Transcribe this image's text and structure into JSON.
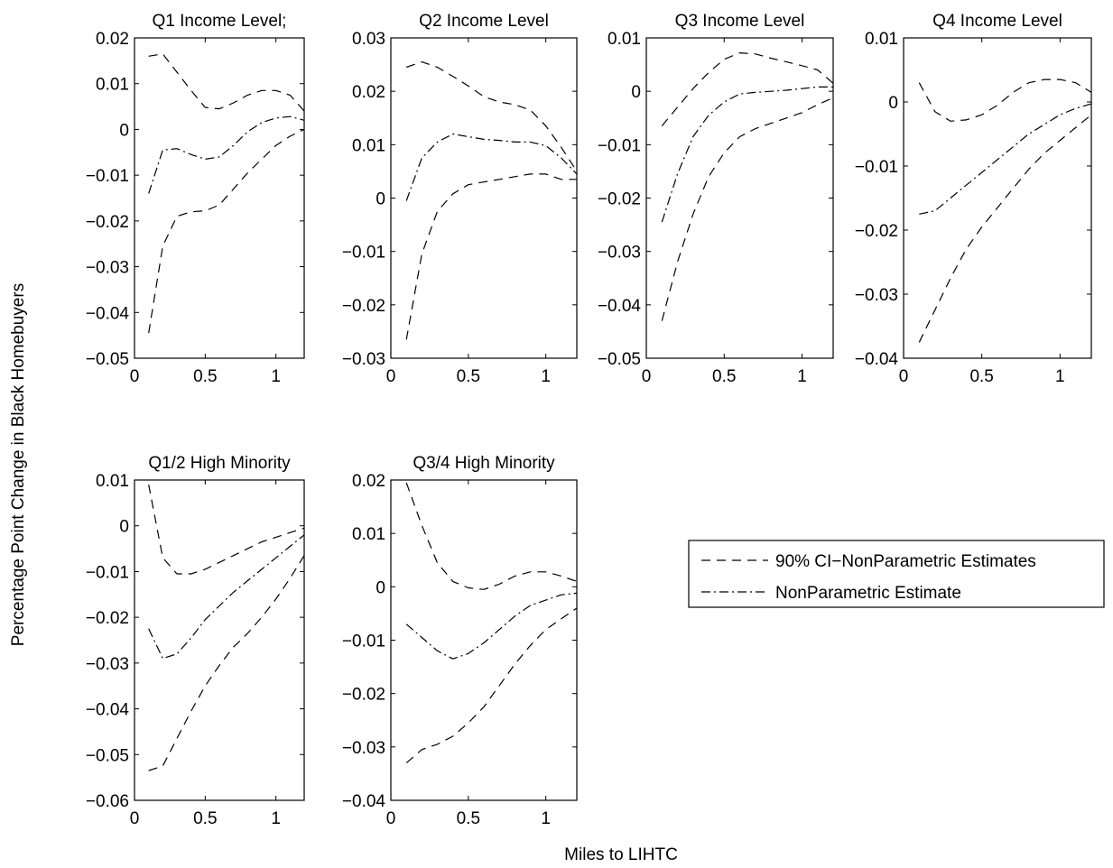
{
  "figure": {
    "ylabel": "Percentage Point Change in Black Homebuyers",
    "xlabel": "Miles to LIHTC"
  },
  "legend": {
    "ci_label": "90% CI−NonParametric Estimates",
    "est_label": "NonParametric Estimate"
  },
  "chart_data": [
    {
      "type": "line",
      "title": "Q1 Income Level;",
      "xlim": [
        0,
        1.2
      ],
      "ylim": [
        -0.05,
        0.02
      ],
      "xticks": [
        0,
        0.5,
        1
      ],
      "xtick_labels": [
        "0",
        "0.5",
        "1"
      ],
      "yticks": [
        -0.05,
        -0.04,
        -0.03,
        -0.02,
        -0.01,
        0,
        0.01,
        0.02
      ],
      "ytick_labels": [
        "−0.05",
        "−0.04",
        "−0.03",
        "−0.02",
        "−0.01",
        "0",
        "0.01",
        "0.02"
      ],
      "series": [
        {
          "style": "dashed",
          "x": [
            0.1,
            0.2,
            0.3,
            0.4,
            0.5,
            0.6,
            0.7,
            0.8,
            0.9,
            1.0,
            1.1,
            1.2
          ],
          "y": [
            0.016,
            0.0165,
            0.0125,
            0.0085,
            0.0048,
            0.0045,
            0.0058,
            0.0075,
            0.0085,
            0.0085,
            0.0075,
            0.004
          ]
        },
        {
          "style": "dashdot",
          "x": [
            0.1,
            0.2,
            0.3,
            0.4,
            0.5,
            0.6,
            0.7,
            0.8,
            0.9,
            1.0,
            1.1,
            1.2
          ],
          "y": [
            -0.014,
            -0.0045,
            -0.0042,
            -0.0055,
            -0.0065,
            -0.006,
            -0.0035,
            -0.0005,
            0.0015,
            0.0025,
            0.0028,
            0.002
          ]
        },
        {
          "style": "dashed",
          "x": [
            0.1,
            0.2,
            0.3,
            0.4,
            0.5,
            0.6,
            0.7,
            0.8,
            0.9,
            1.0,
            1.1,
            1.2
          ],
          "y": [
            -0.0445,
            -0.0255,
            -0.019,
            -0.018,
            -0.0178,
            -0.0165,
            -0.013,
            -0.0095,
            -0.0065,
            -0.0035,
            -0.0015,
            0.0
          ]
        }
      ]
    },
    {
      "type": "line",
      "title": "Q2 Income Level",
      "xlim": [
        0,
        1.2
      ],
      "ylim": [
        -0.03,
        0.03
      ],
      "xticks": [
        0,
        0.5,
        1
      ],
      "xtick_labels": [
        "0",
        "0.5",
        "1"
      ],
      "yticks": [
        -0.03,
        -0.02,
        -0.01,
        0,
        0.01,
        0.02,
        0.03
      ],
      "ytick_labels": [
        "−0.03",
        "−0.02",
        "−0.01",
        "0",
        "0.01",
        "0.02",
        "0.03"
      ],
      "series": [
        {
          "style": "dashed",
          "x": [
            0.1,
            0.2,
            0.3,
            0.4,
            0.5,
            0.6,
            0.7,
            0.8,
            0.9,
            1.0,
            1.1,
            1.2
          ],
          "y": [
            0.0245,
            0.0255,
            0.0245,
            0.0228,
            0.021,
            0.019,
            0.018,
            0.0175,
            0.0165,
            0.0135,
            0.0095,
            0.005
          ]
        },
        {
          "style": "dashdot",
          "x": [
            0.1,
            0.2,
            0.3,
            0.4,
            0.5,
            0.6,
            0.7,
            0.8,
            0.9,
            1.0,
            1.1,
            1.2
          ],
          "y": [
            -0.0005,
            0.0075,
            0.0105,
            0.012,
            0.0115,
            0.011,
            0.0108,
            0.0105,
            0.0105,
            0.0098,
            0.0075,
            0.0045
          ]
        },
        {
          "style": "dashed",
          "x": [
            0.1,
            0.2,
            0.3,
            0.4,
            0.5,
            0.6,
            0.7,
            0.8,
            0.9,
            1.0,
            1.1,
            1.2
          ],
          "y": [
            -0.0265,
            -0.0105,
            -0.0025,
            0.0008,
            0.0025,
            0.003,
            0.0035,
            0.004,
            0.0045,
            0.0045,
            0.0035,
            0.0035
          ]
        }
      ]
    },
    {
      "type": "line",
      "title": "Q3 Income Level",
      "xlim": [
        0,
        1.2
      ],
      "ylim": [
        -0.05,
        0.01
      ],
      "xticks": [
        0,
        0.5,
        1
      ],
      "xtick_labels": [
        "0",
        "0.5",
        "1"
      ],
      "yticks": [
        -0.05,
        -0.04,
        -0.03,
        -0.02,
        -0.01,
        0,
        0.01
      ],
      "ytick_labels": [
        "−0.05",
        "−0.04",
        "−0.03",
        "−0.02",
        "−0.01",
        "0",
        "0.01"
      ],
      "series": [
        {
          "style": "dashed",
          "x": [
            0.1,
            0.2,
            0.3,
            0.4,
            0.5,
            0.6,
            0.7,
            0.8,
            0.9,
            1.0,
            1.1,
            1.2
          ],
          "y": [
            -0.0065,
            -0.003,
            0.0005,
            0.0035,
            0.006,
            0.0072,
            0.007,
            0.0062,
            0.0055,
            0.0048,
            0.004,
            0.0015
          ]
        },
        {
          "style": "dashdot",
          "x": [
            0.1,
            0.2,
            0.3,
            0.4,
            0.5,
            0.6,
            0.7,
            0.8,
            0.9,
            1.0,
            1.1,
            1.2
          ],
          "y": [
            -0.0245,
            -0.0155,
            -0.0085,
            -0.0045,
            -0.002,
            -0.0005,
            -0.0002,
            0.0,
            0.0002,
            0.0005,
            0.0008,
            0.0008
          ]
        },
        {
          "style": "dashed",
          "x": [
            0.1,
            0.2,
            0.3,
            0.4,
            0.5,
            0.6,
            0.7,
            0.8,
            0.9,
            1.0,
            1.1,
            1.2
          ],
          "y": [
            -0.043,
            -0.032,
            -0.023,
            -0.016,
            -0.0115,
            -0.0085,
            -0.007,
            -0.006,
            -0.005,
            -0.004,
            -0.0025,
            -0.0012
          ]
        }
      ]
    },
    {
      "type": "line",
      "title": "Q4 Income Level",
      "xlim": [
        0,
        1.2
      ],
      "ylim": [
        -0.04,
        0.01
      ],
      "xticks": [
        0,
        0.5,
        1
      ],
      "xtick_labels": [
        "0",
        "0.5",
        "1"
      ],
      "yticks": [
        -0.04,
        -0.03,
        -0.02,
        -0.01,
        0,
        0.01
      ],
      "ytick_labels": [
        "−0.04",
        "−0.03",
        "−0.02",
        "−0.01",
        "0",
        "0.01"
      ],
      "series": [
        {
          "style": "dashed",
          "x": [
            0.1,
            0.2,
            0.3,
            0.4,
            0.5,
            0.6,
            0.7,
            0.8,
            0.9,
            1.0,
            1.1,
            1.2
          ],
          "y": [
            0.003,
            -0.0015,
            -0.003,
            -0.0028,
            -0.002,
            -0.0005,
            0.0015,
            0.003,
            0.0035,
            0.0035,
            0.003,
            0.0015
          ]
        },
        {
          "style": "dashdot",
          "x": [
            0.1,
            0.2,
            0.3,
            0.4,
            0.5,
            0.6,
            0.7,
            0.8,
            0.9,
            1.0,
            1.1,
            1.2
          ],
          "y": [
            -0.0175,
            -0.017,
            -0.015,
            -0.013,
            -0.011,
            -0.009,
            -0.007,
            -0.005,
            -0.0035,
            -0.002,
            -0.001,
            -0.0003
          ]
        },
        {
          "style": "dashed",
          "x": [
            0.1,
            0.2,
            0.3,
            0.4,
            0.5,
            0.6,
            0.7,
            0.8,
            0.9,
            1.0,
            1.1,
            1.2
          ],
          "y": [
            -0.0375,
            -0.0325,
            -0.0275,
            -0.023,
            -0.0195,
            -0.0165,
            -0.0135,
            -0.0105,
            -0.008,
            -0.006,
            -0.004,
            -0.002
          ]
        }
      ]
    },
    {
      "type": "line",
      "title": "Q1/2 High Minority",
      "xlim": [
        0,
        1.2
      ],
      "ylim": [
        -0.06,
        0.01
      ],
      "xticks": [
        0,
        0.5,
        1
      ],
      "xtick_labels": [
        "0",
        "0.5",
        "1"
      ],
      "yticks": [
        -0.06,
        -0.05,
        -0.04,
        -0.03,
        -0.02,
        -0.01,
        0,
        0.01
      ],
      "ytick_labels": [
        "−0.06",
        "−0.05",
        "−0.04",
        "−0.03",
        "−0.02",
        "−0.01",
        "0",
        "0.01"
      ],
      "series": [
        {
          "style": "dashed",
          "x": [
            0.1,
            0.2,
            0.3,
            0.4,
            0.5,
            0.6,
            0.7,
            0.8,
            0.9,
            1.0,
            1.1,
            1.2
          ],
          "y": [
            0.009,
            -0.007,
            -0.0105,
            -0.0105,
            -0.0095,
            -0.008,
            -0.0065,
            -0.005,
            -0.0035,
            -0.0025,
            -0.0015,
            -0.0005
          ]
        },
        {
          "style": "dashdot",
          "x": [
            0.1,
            0.2,
            0.3,
            0.4,
            0.5,
            0.6,
            0.7,
            0.8,
            0.9,
            1.0,
            1.1,
            1.2
          ],
          "y": [
            -0.0225,
            -0.029,
            -0.028,
            -0.0245,
            -0.0205,
            -0.0175,
            -0.0145,
            -0.012,
            -0.0095,
            -0.007,
            -0.0045,
            -0.002
          ]
        },
        {
          "style": "dashed",
          "x": [
            0.1,
            0.2,
            0.3,
            0.4,
            0.5,
            0.6,
            0.7,
            0.8,
            0.9,
            1.0,
            1.1,
            1.2
          ],
          "y": [
            -0.0535,
            -0.0525,
            -0.0465,
            -0.0405,
            -0.035,
            -0.0305,
            -0.0265,
            -0.0235,
            -0.02,
            -0.016,
            -0.0115,
            -0.0065
          ]
        }
      ]
    },
    {
      "type": "line",
      "title": "Q3/4 High Minority",
      "xlim": [
        0,
        1.2
      ],
      "ylim": [
        -0.04,
        0.02
      ],
      "xticks": [
        0,
        0.5,
        1
      ],
      "xtick_labels": [
        "0",
        "0.5",
        "1"
      ],
      "yticks": [
        -0.04,
        -0.03,
        -0.02,
        -0.01,
        0,
        0.01,
        0.02
      ],
      "ytick_labels": [
        "−0.04",
        "−0.03",
        "−0.02",
        "−0.01",
        "0",
        "0.01",
        "0.02"
      ],
      "series": [
        {
          "style": "dashed",
          "x": [
            0.1,
            0.2,
            0.3,
            0.4,
            0.5,
            0.6,
            0.7,
            0.8,
            0.9,
            1.0,
            1.1,
            1.2
          ],
          "y": [
            0.0195,
            0.0115,
            0.0045,
            0.001,
            -0.0002,
            -0.0005,
            0.0005,
            0.002,
            0.0028,
            0.0028,
            0.002,
            0.001
          ]
        },
        {
          "style": "dashdot",
          "x": [
            0.1,
            0.2,
            0.3,
            0.4,
            0.5,
            0.6,
            0.7,
            0.8,
            0.9,
            1.0,
            1.1,
            1.2
          ],
          "y": [
            -0.007,
            -0.0095,
            -0.012,
            -0.0135,
            -0.0125,
            -0.0105,
            -0.008,
            -0.0055,
            -0.0035,
            -0.0025,
            -0.0015,
            -0.0012
          ]
        },
        {
          "style": "dashed",
          "x": [
            0.1,
            0.2,
            0.3,
            0.4,
            0.5,
            0.6,
            0.7,
            0.8,
            0.9,
            1.0,
            1.1,
            1.2
          ],
          "y": [
            -0.033,
            -0.0305,
            -0.0295,
            -0.028,
            -0.0255,
            -0.0225,
            -0.0185,
            -0.0145,
            -0.011,
            -0.008,
            -0.006,
            -0.004
          ]
        }
      ]
    }
  ]
}
